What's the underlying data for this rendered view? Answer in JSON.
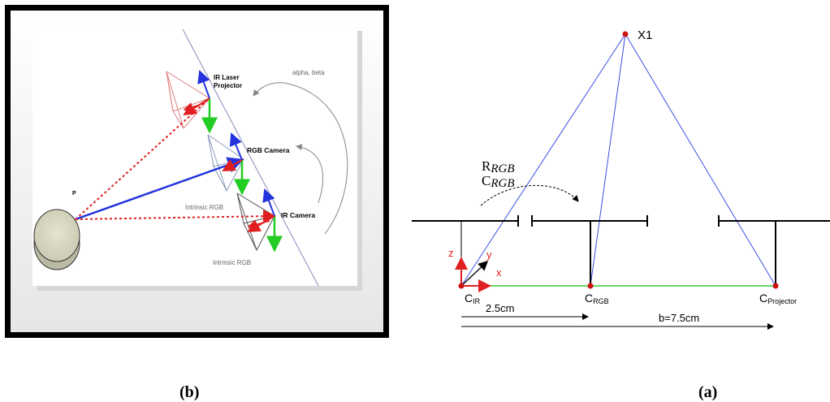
{
  "panel_b": {
    "caption": "(b)",
    "labels": {
      "projector_line1": "IR Laser",
      "projector_line2": "Projector",
      "alpha_beta": "alpha, beta",
      "rgb_camera": "RGB Camera",
      "ir_camera": "IR Camera",
      "point": "P",
      "intrinsic_rgb_1": "Intrinsic RGB",
      "intrinsic_rgb_2": "Intrinsic RGB"
    }
  },
  "panel_a": {
    "caption": "(a)",
    "labels": {
      "x1": "X1",
      "r_rgb_main": "R",
      "r_rgb_sub": "RGB",
      "c_rgb_main": "C",
      "c_rgb_sub": "RGB",
      "axis_z": "z",
      "axis_y": "y",
      "axis_x": "x",
      "c_ir_main": "C",
      "c_ir_sub": "IR",
      "c_rgb2_main": "C",
      "c_rgb2_sub": "RGB",
      "c_proj_main": "C",
      "c_proj_sub": "Projector",
      "dist_1": "2.5cm",
      "dist_2": "b=7.5cm"
    }
  },
  "colors": {
    "blue_ray": "#3b4fe0",
    "green_baseline": "#33cc33",
    "red_point": "#cc1111",
    "arrow_red": "#e02020",
    "arrow_green": "#22cc22",
    "arrow_blue": "#2233dd"
  }
}
